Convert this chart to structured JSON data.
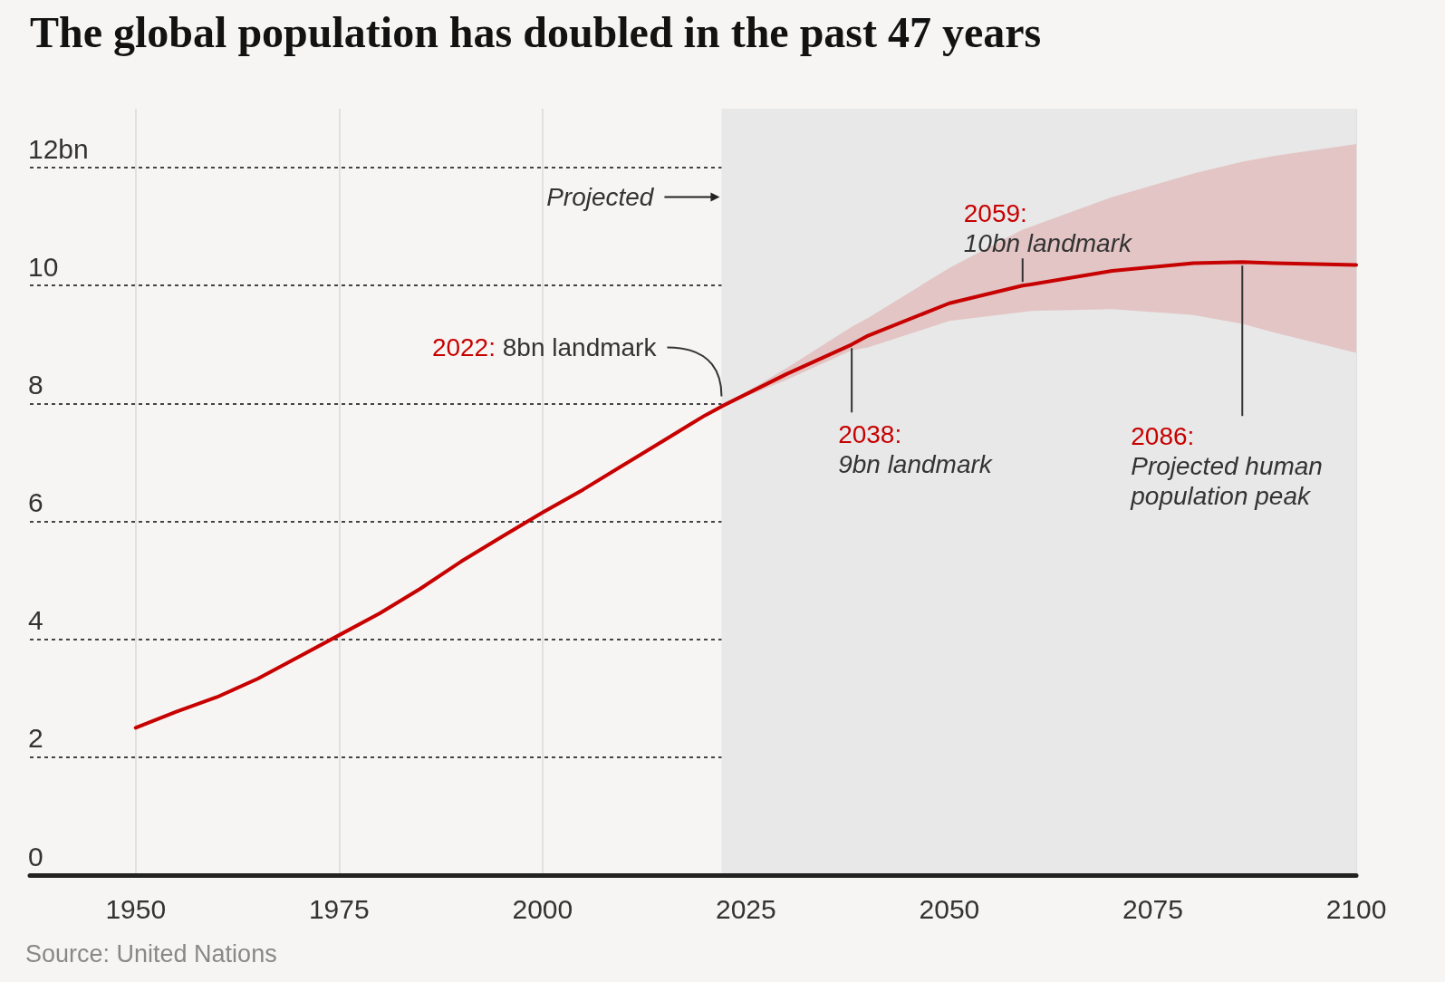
{
  "chart_data": {
    "type": "line",
    "title": "The global population has doubled in the past 47 years",
    "xlim": [
      1937,
      2100
    ],
    "xticks": [
      1950,
      1975,
      2000,
      2025,
      2050,
      2075,
      2100
    ],
    "ylim": [
      0,
      13
    ],
    "yticks": [
      0,
      2,
      4,
      6,
      8,
      10,
      {
        "value": 12,
        "label": "12bn"
      }
    ],
    "grid": true,
    "marker": "none",
    "line_style": "solid",
    "series": [
      {
        "color": "#c70000",
        "x": [
          1950,
          1955,
          1960,
          1965,
          1970,
          1975,
          1980,
          1985,
          1990,
          1995,
          2000,
          2005,
          2010,
          2015,
          2020,
          2022,
          2030,
          2038,
          2040,
          2050,
          2059,
          2060,
          2070,
          2080,
          2086,
          2090,
          2100
        ],
        "values": [
          2.5,
          2.77,
          3.02,
          3.33,
          3.7,
          4.07,
          4.44,
          4.86,
          5.32,
          5.74,
          6.15,
          6.54,
          6.96,
          7.38,
          7.8,
          7.95,
          8.5,
          9.0,
          9.15,
          9.7,
          10.0,
          10.02,
          10.25,
          10.38,
          10.4,
          10.38,
          10.35
        ],
        "lower": [
          null,
          null,
          null,
          null,
          null,
          null,
          null,
          null,
          null,
          null,
          null,
          null,
          null,
          null,
          null,
          7.95,
          8.4,
          8.9,
          8.95,
          9.4,
          9.55,
          9.57,
          9.6,
          9.5,
          9.35,
          9.2,
          8.86
        ],
        "upper": [
          null,
          null,
          null,
          null,
          null,
          null,
          null,
          null,
          null,
          null,
          null,
          null,
          null,
          null,
          null,
          7.95,
          8.6,
          9.3,
          9.45,
          10.3,
          10.95,
          11.0,
          11.5,
          11.9,
          12.1,
          12.2,
          12.4
        ]
      }
    ],
    "bands": [
      {
        "axis": "x",
        "from": 2022,
        "to": 2100,
        "color": "#e8e8e8"
      }
    ],
    "annotations": [
      {
        "text": "Projected",
        "x": 2022,
        "y": 11.5
      },
      {
        "text": "2022: 8bn landmark",
        "x": 2022,
        "y": 8
      },
      {
        "text": "2038: 9bn landmark",
        "x": 2038,
        "y": 9
      },
      {
        "text": "2059: 10bn landmark",
        "x": 2059,
        "y": 10
      },
      {
        "text": "2086: Projected human population peak",
        "x": 2086,
        "y": 10.4
      },
      "Source: United Nations"
    ]
  }
}
